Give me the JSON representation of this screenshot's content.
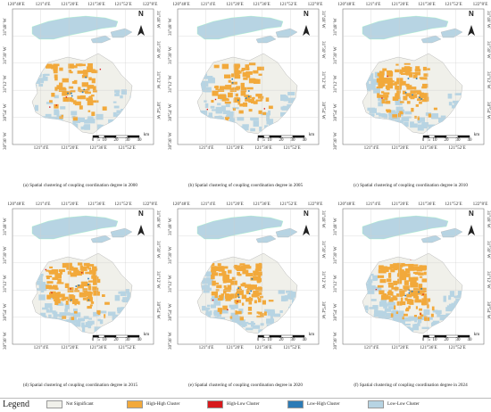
{
  "panels": [
    {
      "caption": "(a) Spatial clustering of coupling coordination degree in 2000",
      "variant": 0
    },
    {
      "caption": "(b) Spatial clustering of coupling coordination degree in 2005",
      "variant": 1
    },
    {
      "caption": "(c) Spatial clustering of coupling coordination degree  in 2010",
      "variant": 2
    },
    {
      "caption": "(d) Spatial clustering of coupling coordination degree in 2015",
      "variant": 3
    },
    {
      "caption": "(e) Spatial clustering of coupling coordination degree in 2020",
      "variant": 4
    },
    {
      "caption": "(f) Spatial clustering of coupling coordination degree in 2024",
      "variant": 5
    }
  ],
  "axes": {
    "top_ticks": [
      "120°48′E",
      "121°4′E",
      "121°20′E",
      "121°36′E",
      "121°52′E",
      "122°8′E"
    ],
    "bottom_ticks": [
      "121°4′E",
      "121°20′E",
      "121°36′E",
      "121°52′E"
    ],
    "left_ticks": [
      "31°48′ W",
      "31°30′ W",
      "31°12′ W",
      "30°54′ W",
      "30°36′ W"
    ],
    "right_ticks": [
      "31°48′ W",
      "31°30′ W",
      "31°12′ W",
      "30°54′ W"
    ]
  },
  "north_label": "N",
  "scale": {
    "labels": [
      "0",
      "5",
      "10",
      "20",
      "30",
      "40"
    ],
    "unit": "km"
  },
  "legend": {
    "title": "Legend",
    "items": [
      {
        "label": "Not Significant",
        "color": "#f0f0ea"
      },
      {
        "label": "High-High Cluster",
        "color": "#f2a93b"
      },
      {
        "label": "High-Low Cluster",
        "color": "#d7191c"
      },
      {
        "label": "Low-High Cluster",
        "color": "#2c7bb6"
      },
      {
        "label": "Low-Low Cluster",
        "color": "#b7d4e3"
      }
    ]
  },
  "colors": {
    "not_significant": "#f0f0ea",
    "high_high": "#f2a93b",
    "high_low": "#d7191c",
    "low_high": "#2c7bb6",
    "low_low": "#b7d4e3",
    "grid": "#cfcfcf",
    "frame": "#777777"
  }
}
